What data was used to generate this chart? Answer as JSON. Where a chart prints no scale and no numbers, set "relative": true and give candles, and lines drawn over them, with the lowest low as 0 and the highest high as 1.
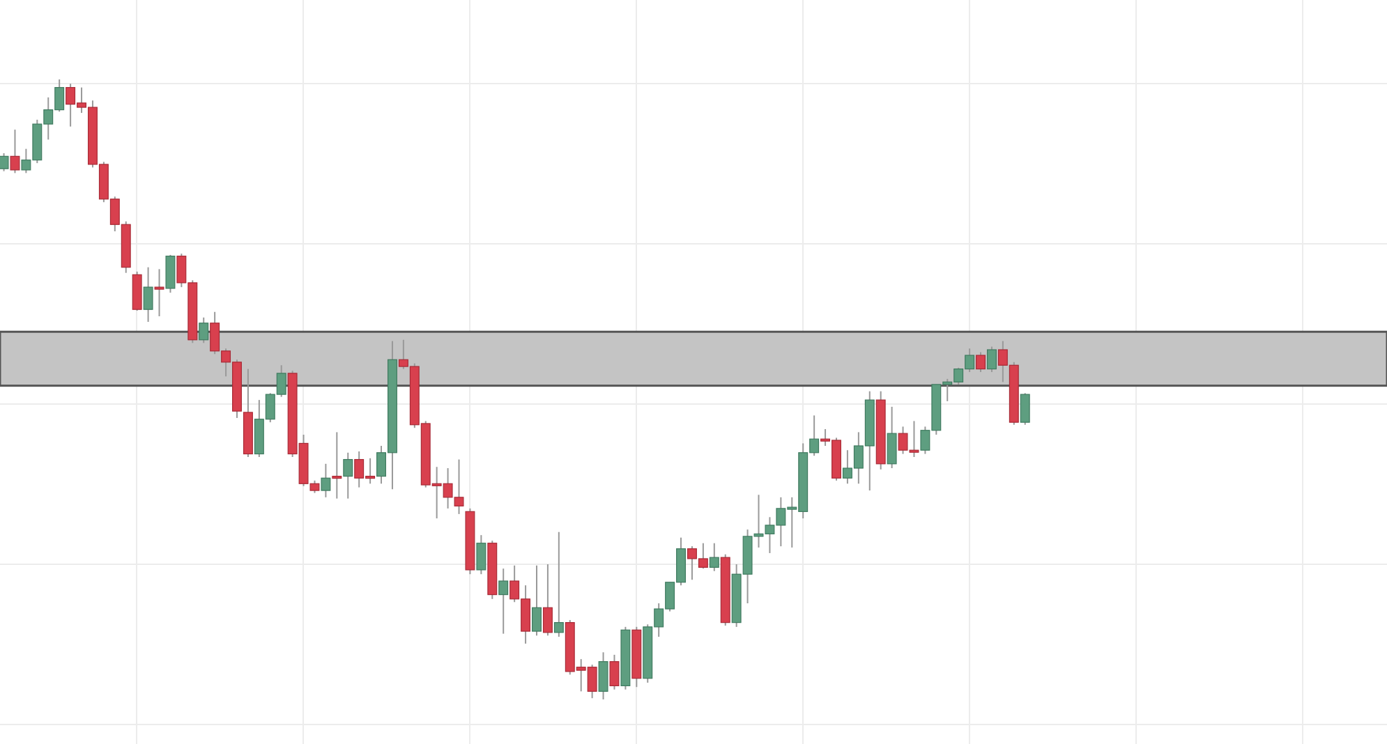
{
  "chart_data": {
    "type": "candlestick",
    "relative": true,
    "grid": true,
    "categories": [
      null,
      null,
      null,
      null,
      null,
      null,
      null,
      null,
      null,
      null,
      null,
      null,
      null,
      null,
      null,
      null,
      null,
      null,
      null,
      null,
      null,
      null,
      null,
      null,
      null,
      null,
      null,
      null,
      null,
      null,
      null,
      null,
      null,
      null,
      null,
      null,
      null,
      null,
      null,
      null,
      null,
      null,
      null,
      null,
      null,
      null,
      null,
      null,
      null,
      null,
      null,
      null,
      null,
      null,
      null,
      null,
      null,
      null,
      null,
      null,
      null,
      null,
      null,
      null,
      null,
      null,
      null,
      null,
      null,
      null,
      null,
      null,
      null,
      null,
      null,
      null,
      null,
      null,
      null,
      null,
      null,
      null,
      null,
      null,
      null,
      null,
      null,
      null,
      null,
      null,
      null,
      null,
      null
    ],
    "ohlc": [
      [
        0.856,
        0.881,
        0.852,
        0.876
      ],
      [
        0.876,
        0.919,
        0.849,
        0.854
      ],
      [
        0.854,
        0.888,
        0.849,
        0.87
      ],
      [
        0.87,
        0.935,
        0.865,
        0.928
      ],
      [
        0.928,
        0.971,
        0.903,
        0.951
      ],
      [
        0.951,
        1.0,
        0.948,
        0.987
      ],
      [
        0.987,
        0.993,
        0.924,
        0.96
      ],
      [
        0.962,
        0.987,
        0.946,
        0.955
      ],
      [
        0.955,
        0.966,
        0.858,
        0.863
      ],
      [
        0.863,
        0.867,
        0.802,
        0.807
      ],
      [
        0.807,
        0.811,
        0.755,
        0.766
      ],
      [
        0.766,
        0.771,
        0.688,
        0.697
      ],
      [
        0.685,
        0.69,
        0.627,
        0.629
      ],
      [
        0.629,
        0.697,
        0.609,
        0.665
      ],
      [
        0.665,
        0.694,
        0.618,
        0.663
      ],
      [
        0.663,
        0.717,
        0.656,
        0.715
      ],
      [
        0.715,
        0.719,
        0.665,
        0.672
      ],
      [
        0.672,
        0.676,
        0.575,
        0.58
      ],
      [
        0.58,
        0.616,
        0.575,
        0.607
      ],
      [
        0.607,
        0.625,
        0.557,
        0.562
      ],
      [
        0.562,
        0.566,
        0.521,
        0.544
      ],
      [
        0.544,
        0.548,
        0.454,
        0.465
      ],
      [
        0.463,
        0.533,
        0.391,
        0.396
      ],
      [
        0.396,
        0.483,
        0.391,
        0.452
      ],
      [
        0.452,
        0.494,
        0.447,
        0.492
      ],
      [
        0.492,
        0.539,
        0.488,
        0.526
      ],
      [
        0.526,
        0.53,
        0.391,
        0.396
      ],
      [
        0.413,
        0.427,
        0.344,
        0.348
      ],
      [
        0.348,
        0.353,
        0.333,
        0.337
      ],
      [
        0.337,
        0.38,
        0.326,
        0.357
      ],
      [
        0.36,
        0.431,
        0.324,
        0.357
      ],
      [
        0.36,
        0.398,
        0.324,
        0.387
      ],
      [
        0.387,
        0.4,
        0.342,
        0.357
      ],
      [
        0.36,
        0.389,
        0.348,
        0.357
      ],
      [
        0.36,
        0.409,
        0.348,
        0.398
      ],
      [
        0.398,
        0.578,
        0.339,
        0.548
      ],
      [
        0.548,
        0.58,
        0.533,
        0.537
      ],
      [
        0.537,
        0.542,
        0.438,
        0.443
      ],
      [
        0.445,
        0.449,
        0.342,
        0.346
      ],
      [
        0.348,
        0.375,
        0.292,
        0.346
      ],
      [
        0.348,
        0.373,
        0.308,
        0.326
      ],
      [
        0.326,
        0.387,
        0.299,
        0.312
      ],
      [
        0.303,
        0.308,
        0.202,
        0.209
      ],
      [
        0.209,
        0.265,
        0.202,
        0.252
      ],
      [
        0.252,
        0.256,
        0.162,
        0.169
      ],
      [
        0.169,
        0.211,
        0.106,
        0.191
      ],
      [
        0.191,
        0.216,
        0.157,
        0.162
      ],
      [
        0.162,
        0.184,
        0.09,
        0.11
      ],
      [
        0.11,
        0.216,
        0.103,
        0.148
      ],
      [
        0.148,
        0.218,
        0.103,
        0.108
      ],
      [
        0.108,
        0.27,
        0.101,
        0.124
      ],
      [
        0.124,
        0.128,
        0.04,
        0.045
      ],
      [
        0.052,
        0.065,
        0.013,
        0.047
      ],
      [
        0.052,
        0.056,
        0.002,
        0.013
      ],
      [
        0.013,
        0.076,
        0.0,
        0.061
      ],
      [
        0.061,
        0.072,
        0.016,
        0.022
      ],
      [
        0.022,
        0.117,
        0.016,
        0.112
      ],
      [
        0.112,
        0.117,
        0.02,
        0.034
      ],
      [
        0.034,
        0.121,
        0.027,
        0.117
      ],
      [
        0.117,
        0.155,
        0.101,
        0.146
      ],
      [
        0.146,
        0.189,
        0.142,
        0.189
      ],
      [
        0.189,
        0.261,
        0.184,
        0.243
      ],
      [
        0.243,
        0.247,
        0.193,
        0.227
      ],
      [
        0.227,
        0.252,
        0.211,
        0.213
      ],
      [
        0.213,
        0.252,
        0.207,
        0.229
      ],
      [
        0.229,
        0.234,
        0.119,
        0.124
      ],
      [
        0.124,
        0.218,
        0.117,
        0.202
      ],
      [
        0.202,
        0.274,
        0.155,
        0.263
      ],
      [
        0.263,
        0.33,
        0.245,
        0.267
      ],
      [
        0.267,
        0.294,
        0.236,
        0.281
      ],
      [
        0.281,
        0.326,
        0.247,
        0.308
      ],
      [
        0.308,
        0.326,
        0.245,
        0.31
      ],
      [
        0.303,
        0.413,
        0.292,
        0.398
      ],
      [
        0.398,
        0.458,
        0.393,
        0.42
      ],
      [
        0.42,
        0.436,
        0.409,
        0.418
      ],
      [
        0.418,
        0.422,
        0.353,
        0.357
      ],
      [
        0.357,
        0.402,
        0.348,
        0.373
      ],
      [
        0.373,
        0.431,
        0.348,
        0.409
      ],
      [
        0.409,
        0.497,
        0.337,
        0.483
      ],
      [
        0.483,
        0.497,
        0.371,
        0.38
      ],
      [
        0.38,
        0.472,
        0.373,
        0.429
      ],
      [
        0.429,
        0.44,
        0.396,
        0.402
      ],
      [
        0.402,
        0.449,
        0.391,
        0.4
      ],
      [
        0.402,
        0.44,
        0.396,
        0.434
      ],
      [
        0.434,
        0.508,
        0.427,
        0.508
      ],
      [
        0.508,
        0.517,
        0.481,
        0.512
      ],
      [
        0.512,
        0.535,
        0.508,
        0.533
      ],
      [
        0.533,
        0.566,
        0.528,
        0.555
      ],
      [
        0.555,
        0.56,
        0.528,
        0.533
      ],
      [
        0.533,
        0.569,
        0.528,
        0.564
      ],
      [
        0.564,
        0.578,
        0.512,
        0.539
      ],
      [
        0.539,
        0.544,
        0.443,
        0.447
      ],
      [
        0.447,
        0.494,
        0.443,
        0.492
      ]
    ],
    "bands": [
      {
        "axis": "y",
        "from": 0.506,
        "to": 0.593,
        "color": "#c4c4c4"
      }
    ]
  }
}
